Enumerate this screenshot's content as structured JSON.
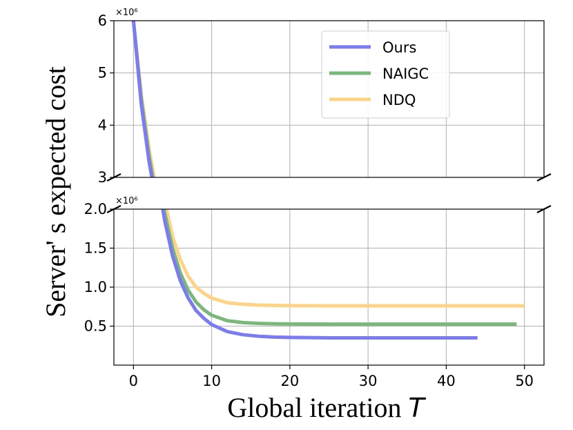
{
  "chart_data": {
    "type": "line",
    "xlabel": "Global iteration",
    "xlabel_italic_suffix": "T",
    "ylabel": "Server' s expected cost",
    "xlim": [
      -2.5,
      52.5
    ],
    "x_ticks": [
      "0",
      "10",
      "20",
      "30",
      "40",
      "50"
    ],
    "x_tick_values": [
      0,
      10,
      20,
      30,
      40,
      50
    ],
    "broken_axis": true,
    "upper_panel": {
      "ylim": [
        3,
        6
      ],
      "y_ticks": [
        "3",
        "4",
        "5",
        "6"
      ],
      "y_tick_values": [
        3,
        4,
        5,
        6
      ],
      "multiplier": "×10⁶"
    },
    "lower_panel": {
      "ylim": [
        0,
        2
      ],
      "y_ticks": [
        "0.5",
        "1.0",
        "1.5",
        "2.0"
      ],
      "y_tick_values": [
        0.5,
        1.0,
        1.5,
        2.0
      ],
      "multiplier": "×10⁶"
    },
    "grid": true,
    "legend_position": "top-right (upper panel)",
    "series": [
      {
        "name": "Ours",
        "color": "#7b7bf2",
        "x": [
          0,
          1,
          2,
          3,
          4,
          5,
          6,
          7,
          8,
          9,
          10,
          12,
          14,
          16,
          18,
          20,
          25,
          30,
          35,
          40,
          44
        ],
        "y": [
          6.0,
          4.4,
          3.3,
          2.45,
          1.85,
          1.4,
          1.08,
          0.86,
          0.7,
          0.6,
          0.52,
          0.43,
          0.39,
          0.37,
          0.36,
          0.355,
          0.35,
          0.35,
          0.35,
          0.35,
          0.35
        ]
      },
      {
        "name": "NAIGC",
        "color": "#7ab87a",
        "x": [
          0,
          1,
          2,
          3,
          4,
          5,
          6,
          7,
          8,
          9,
          10,
          12,
          14,
          16,
          18,
          20,
          25,
          30,
          35,
          40,
          45,
          49
        ],
        "y": [
          6.0,
          4.5,
          3.4,
          2.55,
          1.95,
          1.5,
          1.18,
          0.96,
          0.81,
          0.71,
          0.64,
          0.57,
          0.545,
          0.535,
          0.53,
          0.528,
          0.525,
          0.525,
          0.525,
          0.525,
          0.525,
          0.525
        ]
      },
      {
        "name": "NDQ",
        "color": "#fdd486",
        "x": [
          0,
          1,
          2,
          3,
          4,
          5,
          6,
          7,
          8,
          9,
          10,
          12,
          14,
          16,
          18,
          20,
          25,
          30,
          35,
          40,
          45,
          50
        ],
        "y": [
          6.0,
          4.6,
          3.55,
          2.7,
          2.1,
          1.65,
          1.35,
          1.14,
          1.0,
          0.92,
          0.86,
          0.8,
          0.78,
          0.77,
          0.765,
          0.762,
          0.76,
          0.76,
          0.76,
          0.76,
          0.76,
          0.76
        ]
      }
    ]
  }
}
